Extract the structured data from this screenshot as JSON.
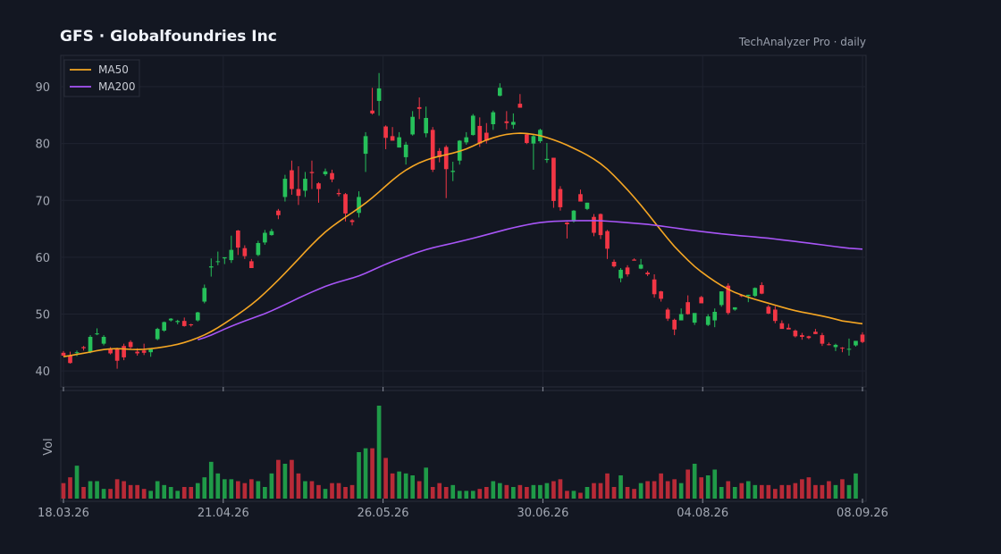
{
  "header": {
    "title": "GFS  ·  Globalfoundries Inc",
    "source": "TechAnalyzer Pro · daily"
  },
  "chart_data": {
    "type": "candlestick",
    "x_tick_labels": [
      "18.03.26",
      "21.04.26",
      "26.05.26",
      "30.06.26",
      "04.08.26",
      "08.09.26"
    ],
    "y_ticks": [
      40,
      50,
      60,
      70,
      80,
      90
    ],
    "ylim": [
      37.2,
      95.5
    ],
    "volume_label": "Vol",
    "legend": [
      "MA50",
      "MA200"
    ],
    "grid": true,
    "legend_position": "top-left",
    "colors": {
      "up": "#26c05a",
      "down": "#f23645",
      "ma50": "#f5a623",
      "ma200": "#a855f7",
      "volume_up": "#1f9a48",
      "volume_down": "#b82a37"
    },
    "candles": [
      [
        43.2,
        43.5,
        42.6,
        42.7
      ],
      [
        42.7,
        43.4,
        41.3,
        41.4
      ],
      [
        43.2,
        43.6,
        42.6,
        43.3
      ],
      [
        44.2,
        44.4,
        43.6,
        44.0
      ],
      [
        43.3,
        46.3,
        43.1,
        46.0
      ],
      [
        46.6,
        47.5,
        46.3,
        46.6
      ],
      [
        44.8,
        46.3,
        44.5,
        46.0
      ],
      [
        43.8,
        44.2,
        42.9,
        43.1
      ],
      [
        43.8,
        44.1,
        40.4,
        41.8
      ],
      [
        44.4,
        44.8,
        41.9,
        42.4
      ],
      [
        45.1,
        45.4,
        43.9,
        44.2
      ],
      [
        43.4,
        44.0,
        42.7,
        43.1
      ],
      [
        43.6,
        44.8,
        42.8,
        43.2
      ],
      [
        43.3,
        43.9,
        42.5,
        43.8
      ],
      [
        45.6,
        47.6,
        45.4,
        47.4
      ],
      [
        47.1,
        48.7,
        46.9,
        48.6
      ],
      [
        48.9,
        49.3,
        48.7,
        49.2
      ],
      [
        48.6,
        49.0,
        48.2,
        48.8
      ],
      [
        48.8,
        49.4,
        47.8,
        47.9
      ],
      [
        48.2,
        48.3,
        47.8,
        48.1
      ],
      [
        48.9,
        50.4,
        48.7,
        50.3
      ],
      [
        52.2,
        55.2,
        51.9,
        54.6
      ],
      [
        58.2,
        59.8,
        56.6,
        58.4
      ],
      [
        59.2,
        61.0,
        58.6,
        59.3
      ],
      [
        59.8,
        60.0,
        58.8,
        60.0
      ],
      [
        59.5,
        63.8,
        59.0,
        61.3
      ],
      [
        64.7,
        64.8,
        60.4,
        61.7
      ],
      [
        61.6,
        62.1,
        59.7,
        60.2
      ],
      [
        59.3,
        59.7,
        58.2,
        58.1
      ],
      [
        60.4,
        62.9,
        60.2,
        62.5
      ],
      [
        62.6,
        64.8,
        62.2,
        64.3
      ],
      [
        63.9,
        65.0,
        63.8,
        64.6
      ],
      [
        68.2,
        68.5,
        66.7,
        67.4
      ],
      [
        70.6,
        74.5,
        69.8,
        73.8
      ],
      [
        75.3,
        77.0,
        71.0,
        72.0
      ],
      [
        72.0,
        76.0,
        69.2,
        70.8
      ],
      [
        71.7,
        75.0,
        70.6,
        73.8
      ],
      [
        75.0,
        77.0,
        72.0,
        74.8
      ],
      [
        73.0,
        73.2,
        69.6,
        72.0
      ],
      [
        74.6,
        75.6,
        74.3,
        75.1
      ],
      [
        74.8,
        75.4,
        73.2,
        73.7
      ],
      [
        71.3,
        72.0,
        70.7,
        71.1
      ],
      [
        71.1,
        71.3,
        66.3,
        67.7
      ],
      [
        66.5,
        66.7,
        65.6,
        66.2
      ],
      [
        67.8,
        71.6,
        67.0,
        70.6
      ],
      [
        78.2,
        82.0,
        75.0,
        81.3
      ],
      [
        85.8,
        89.8,
        85.1,
        85.3
      ],
      [
        87.5,
        92.4,
        84.9,
        89.7
      ],
      [
        83.0,
        83.2,
        79.0,
        81.0
      ],
      [
        81.3,
        82.9,
        80.6,
        80.5
      ],
      [
        79.3,
        82.0,
        79.3,
        81.1
      ],
      [
        77.6,
        80.3,
        76.3,
        79.8
      ],
      [
        81.6,
        85.7,
        81.4,
        84.7
      ],
      [
        86.4,
        88.1,
        84.3,
        86.1
      ],
      [
        81.8,
        86.5,
        81.1,
        84.5
      ],
      [
        82.4,
        82.9,
        75.0,
        75.4
      ],
      [
        78.7,
        79.2,
        76.7,
        77.6
      ],
      [
        79.4,
        79.7,
        70.4,
        75.5
      ],
      [
        75.0,
        76.8,
        73.4,
        75.2
      ],
      [
        77.0,
        80.6,
        76.3,
        80.5
      ],
      [
        80.2,
        82.0,
        79.8,
        81.1
      ],
      [
        81.5,
        85.2,
        81.4,
        84.9
      ],
      [
        83.1,
        84.6,
        79.4,
        80.0
      ],
      [
        81.9,
        83.6,
        80.0,
        80.5
      ],
      [
        83.4,
        85.8,
        82.4,
        85.5
      ],
      [
        88.4,
        90.6,
        88.3,
        89.8
      ],
      [
        83.9,
        85.7,
        82.5,
        83.6
      ],
      [
        83.3,
        85.3,
        82.6,
        83.8
      ],
      [
        87.0,
        88.7,
        86.3,
        86.3
      ],
      [
        81.6,
        81.7,
        79.9,
        80.1
      ],
      [
        80.0,
        81.5,
        75.4,
        81.3
      ],
      [
        80.4,
        82.6,
        80.1,
        82.4
      ],
      [
        77.1,
        80.1,
        76.6,
        77.3
      ],
      [
        77.5,
        77.5,
        68.7,
        69.9
      ],
      [
        72.0,
        72.5,
        68.2,
        68.8
      ],
      [
        66.1,
        66.2,
        63.3,
        65.8
      ],
      [
        66.3,
        68.3,
        66.1,
        68.2
      ],
      [
        71.1,
        71.9,
        69.9,
        69.8
      ],
      [
        68.5,
        69.6,
        68.3,
        69.6
      ],
      [
        67.1,
        67.6,
        63.7,
        64.3
      ],
      [
        67.6,
        67.7,
        63.2,
        63.9
      ],
      [
        64.6,
        64.8,
        59.7,
        61.5
      ],
      [
        59.2,
        59.6,
        58.2,
        58.4
      ],
      [
        56.3,
        58.1,
        55.6,
        57.8
      ],
      [
        58.2,
        58.6,
        56.6,
        57.0
      ],
      [
        59.6,
        59.8,
        59.5,
        59.4
      ],
      [
        58.0,
        59.7,
        57.9,
        58.7
      ],
      [
        57.3,
        57.6,
        56.7,
        57.0
      ],
      [
        56.1,
        57.0,
        52.9,
        53.5
      ],
      [
        54.0,
        54.1,
        52.2,
        52.7
      ],
      [
        50.8,
        51.1,
        48.8,
        49.2
      ],
      [
        49.0,
        49.2,
        46.3,
        47.3
      ],
      [
        48.9,
        51.0,
        48.9,
        50.0
      ],
      [
        52.1,
        53.3,
        49.9,
        50.0
      ],
      [
        48.5,
        50.0,
        48.1,
        50.2
      ],
      [
        53.0,
        53.2,
        52.1,
        51.9
      ],
      [
        48.1,
        50.0,
        47.9,
        49.6
      ],
      [
        48.9,
        51.0,
        47.7,
        50.4
      ],
      [
        51.6,
        54.0,
        51.3,
        54.0
      ],
      [
        55.0,
        55.4,
        49.9,
        50.2
      ],
      [
        50.8,
        51.2,
        50.6,
        51.2
      ],
      [
        53.3,
        53.5,
        53.0,
        53.2
      ],
      [
        53.2,
        53.4,
        52.1,
        53.4
      ],
      [
        53.2,
        54.7,
        53.0,
        54.6
      ],
      [
        55.1,
        55.6,
        53.5,
        53.6
      ],
      [
        51.3,
        51.6,
        50.0,
        50.1
      ],
      [
        50.8,
        51.4,
        48.4,
        48.8
      ],
      [
        48.4,
        48.9,
        47.5,
        47.4
      ],
      [
        47.6,
        48.3,
        47.4,
        47.3
      ],
      [
        47.1,
        47.3,
        45.9,
        46.1
      ],
      [
        46.3,
        46.7,
        45.5,
        46.0
      ],
      [
        46.1,
        46.2,
        45.6,
        45.8
      ],
      [
        46.9,
        47.4,
        46.5,
        46.5
      ],
      [
        46.3,
        46.7,
        44.4,
        44.8
      ],
      [
        44.7,
        45.0,
        44.5,
        44.6
      ],
      [
        44.2,
        44.8,
        43.5,
        44.6
      ],
      [
        44.1,
        44.2,
        43.3,
        44.0
      ],
      [
        43.8,
        45.7,
        42.7,
        43.9
      ],
      [
        44.5,
        45.3,
        44.3,
        45.3
      ],
      [
        46.4,
        46.8,
        44.9,
        45.1
      ]
    ],
    "volume": [
      8,
      11,
      17,
      6,
      9,
      9,
      5,
      5,
      10,
      9,
      7,
      7,
      5,
      4,
      9,
      7,
      6,
      4,
      6,
      6,
      8,
      11,
      19,
      13,
      10,
      10,
      9,
      8,
      10,
      9,
      6,
      13,
      20,
      18,
      20,
      13,
      9,
      9,
      7,
      5,
      8,
      8,
      6,
      7,
      24,
      26,
      26,
      48,
      21,
      13,
      14,
      13,
      12,
      9,
      16,
      6,
      8,
      6,
      7,
      4,
      4,
      4,
      5,
      6,
      9,
      8,
      7,
      6,
      7,
      6,
      7,
      7,
      8,
      9,
      10,
      4,
      4,
      3,
      6,
      8,
      8,
      13,
      6,
      12,
      6,
      5,
      8,
      9,
      9,
      13,
      9,
      10,
      8,
      15,
      18,
      11,
      12,
      15,
      6,
      9,
      6,
      8,
      9,
      7,
      7,
      7,
      5,
      7,
      7,
      8,
      10,
      11,
      7,
      7,
      9,
      7,
      10,
      7,
      13
    ]
  }
}
